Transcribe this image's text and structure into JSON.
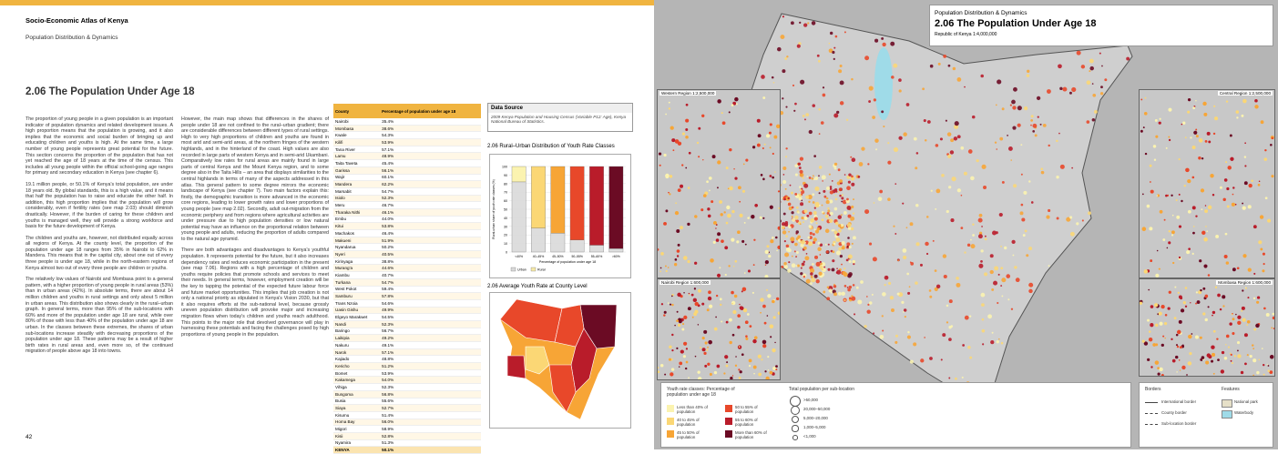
{
  "header": {
    "atlas": "Socio-Economic Atlas of Kenya",
    "section": "Population Distribution & Dynamics"
  },
  "title": "2.06   The Population Under Age 18",
  "page_number": "42",
  "body": {
    "column1": [
      "The proportion of young people in a given population is an important indicator of population dynamics and related development issues. A high proportion means that the population is growing, and it also implies that the economic and social burden of bringing up and educating children and youths is high. At the same time, a large number of young people represents great potential for the future. This section concerns the proportion of the population that has not yet reached the age of 18 years at the time of the census. This includes all young people within the official school-going age ranges for primary and secondary education in Kenya (see chapter 6).",
      "19.1 million people, or 50.1% of Kenya's total population, are under 18 years old. By global standards, this is a high value, and it means that half the population has to raise and educate the other half. In addition, this high proportion implies that the population will grow considerably, even if fertility rates (see map 2.03) should diminish drastically. However, if the burden of caring for these children and youths is managed well, they will provide a strong workforce and basis for the future development of Kenya.",
      "The children and youths are, however, not distributed equally across all regions of Kenya. At the county level, the proportion of the population under age 18 ranges from 35% in Nairobi to 62% in Mandera. This means that in the capital city, about one out of every three people is under age 18, while in the north-eastern regions of Kenya almost two out of every three people are children or youths.",
      "The relatively low values of Nairobi and Mombasa point to a general pattern, with a higher proportion of young people in rural areas (53%) than in urban areas (42%). In absolute terms, there are about 14 million children and youths in rural settings and only about 5 million in urban areas. This distribution also shows clearly in the rural–urban graph. In general terms, more than 95% of the sub-locations with 60% and more of the population under age 18 are rural, while over 80% of those with less than 40% of the population under age 18 are urban. In the classes between these extremes, the shares of urban sub-locations increase steadily with decreasing proportions of the population under age 18. These patterns may be a result of higher birth rates in rural areas and, even more so, of the continued migration of people above age 18 into towns."
    ],
    "column2": [
      "However, the main map shows that differences in the shares of people under 18 are not confined to the rural–urban gradient; there are considerable differences between different types of rural settings. High to very high proportions of children and youths are found in most arid and semi-arid areas, at the northern fringes of the western highlands, and in the hinterland of the coast. High values are also recorded in large parts of western Kenya and in semi-arid Ukambani. Comparatively low rates for rural areas are mainly found in large parts of central Kenya and the Mount Kenya region, and to some degree also in the Taita Hills – an area that displays similarities to the central highlands in terms of many of the aspects addressed in this atlas. This general pattern to some degree mirrors the economic landscape of Kenya (see chapter 7). Two main factors explain this: firstly, the demographic transition is more advanced in the economic core regions, leading to lower growth rates and lower proportions of young people (see map 2.02). Secondly, adult out-migration from the economic periphery and from regions where agricultural activities are under pressure due to high population densities or low natural potential may have an influence on the proportional relation between young people and adults, reducing the proportion of adults compared to the natural age pyramid.",
      "There are both advantages and disadvantages to Kenya's youthful population. It represents potential for the future, but it also increases dependency rates and reduces economic participation in the present (see map 7.06). Regions with a high percentage of children and youths require policies that promote schools and services to meet their needs. In general terms, however, employment creation will be the key to tapping the potential of the expected future labour force and future market opportunities. This implies that job creation is not only a national priority as stipulated in Kenya's Vision 2030, but that it also requires efforts at the sub-national level, because grossly uneven population distribution will provoke major and increasing migration flows when today's children and youths reach adulthood. This points to the major role that devolved governance will play in harnessing these potentials and facing the challenges posed by high proportions of young people in the population."
    ]
  },
  "table": {
    "columns": [
      "County",
      "Percentage of population under age 18"
    ],
    "rows": [
      [
        "Nairobi",
        "35.4%"
      ],
      [
        "Mombasa",
        "38.6%"
      ],
      [
        "Kwale",
        "54.3%"
      ],
      [
        "Kilifi",
        "53.9%"
      ],
      [
        "Tana River",
        "57.1%"
      ],
      [
        "Lamu",
        "48.9%"
      ],
      [
        "Taita Taveta",
        "45.4%"
      ],
      [
        "Garissa",
        "56.1%"
      ],
      [
        "Wajir",
        "60.1%"
      ],
      [
        "Mandera",
        "62.2%"
      ],
      [
        "Marsabit",
        "54.7%"
      ],
      [
        "Isiolo",
        "52.3%"
      ],
      [
        "Meru",
        "46.7%"
      ],
      [
        "Tharaka Nithi",
        "46.1%"
      ],
      [
        "Embu",
        "44.0%"
      ],
      [
        "Kitui",
        "53.8%"
      ],
      [
        "Machakos",
        "46.4%"
      ],
      [
        "Makueni",
        "51.9%"
      ],
      [
        "Nyandarua",
        "50.2%"
      ],
      [
        "Nyeri",
        "40.5%"
      ],
      [
        "Kirinyaga",
        "38.8%"
      ],
      [
        "Murang'a",
        "44.6%"
      ],
      [
        "Kiambu",
        "40.7%"
      ],
      [
        "Turkana",
        "54.7%"
      ],
      [
        "West Pokot",
        "59.4%"
      ],
      [
        "Samburu",
        "57.8%"
      ],
      [
        "Trans Nzoia",
        "54.6%"
      ],
      [
        "Uasin Gishu",
        "49.9%"
      ],
      [
        "Elgeyo Marakwet",
        "54.5%"
      ],
      [
        "Nandi",
        "52.3%"
      ],
      [
        "Baringo",
        "56.7%"
      ],
      [
        "Laikipia",
        "49.2%"
      ],
      [
        "Nakuru",
        "49.1%"
      ],
      [
        "Narok",
        "57.1%"
      ],
      [
        "Kajiado",
        "48.8%"
      ],
      [
        "Kericho",
        "51.2%"
      ],
      [
        "Bomet",
        "53.9%"
      ],
      [
        "Kakamega",
        "54.0%"
      ],
      [
        "Vihiga",
        "52.3%"
      ],
      [
        "Bungoma",
        "56.8%"
      ],
      [
        "Busia",
        "55.6%"
      ],
      [
        "Siaya",
        "52.7%"
      ],
      [
        "Kisumu",
        "51.4%"
      ],
      [
        "Homa Bay",
        "56.0%"
      ],
      [
        "Migori",
        "58.9%"
      ],
      [
        "Kisii",
        "52.8%"
      ],
      [
        "Nyamira",
        "51.3%"
      ],
      [
        "KENYA",
        "50.1%"
      ]
    ]
  },
  "data_source": {
    "heading": "Data Source",
    "text": "2009 Kenya Population and Housing Census (Variable P12: Age), Kenya National Bureau of Statistics."
  },
  "rural_urban_chart": {
    "type": "bar",
    "stacked": true,
    "title": "2.06  Rural–Urban Distribution of Youth Rate Classes",
    "categories": [
      "<40%",
      "40–45%",
      "45–50%",
      "50–55%",
      "55–60%",
      ">60%"
    ],
    "series": [
      {
        "name": "Urban",
        "color": "#d9d9d9",
        "values": [
          82,
          28,
          22,
          14,
          8,
          4
        ]
      },
      {
        "name": "Rural",
        "color": "#f5e9a8",
        "values": [
          18,
          72,
          78,
          86,
          92,
          96
        ]
      }
    ],
    "class_colors": [
      "#fbf3b0",
      "#fbd775",
      "#f7a536",
      "#e8482a",
      "#b91c2a",
      "#6b0b24"
    ],
    "ylim": [
      0,
      100
    ],
    "yticks": [
      0,
      10,
      20,
      30,
      40,
      50,
      60,
      70,
      80,
      90,
      100
    ],
    "x_label": "Percentage of population under age 18",
    "y_label": "Rural-urban share of youth rate classes (%)"
  },
  "county_map_title": "2.06  Average Youth Rate at County Level",
  "map": {
    "section": "Population Distribution & Dynamics",
    "title": "2.06  The Population Under Age 18",
    "scale": "Republic of Kenya 1:4,000,000",
    "insets": [
      "Western Region 1:2,500,000",
      "Central Region 1:2,500,000",
      "Nairobi Region 1:600,000",
      "Mombasa Region 1:600,000"
    ],
    "legend_title": "Youth rate classes: Percentage of population under age 18",
    "classes": [
      "Less than 40% of population",
      "40 to 45% of population",
      "45 to 50% of population",
      "50 to 55% of population",
      "55 to 60% of population",
      "More than 60% of population"
    ],
    "size_title": "Total population per sub-location",
    "sizes": [
      ">50,000",
      "20,000–50,000",
      "5,000–20,000",
      "1,000–5,000",
      "<1,000"
    ],
    "borders_title": "Borders",
    "borders": [
      "International border",
      "County border",
      "Sub-location border"
    ],
    "features_title": "Features",
    "features": [
      "National park",
      "Waterbody"
    ]
  }
}
